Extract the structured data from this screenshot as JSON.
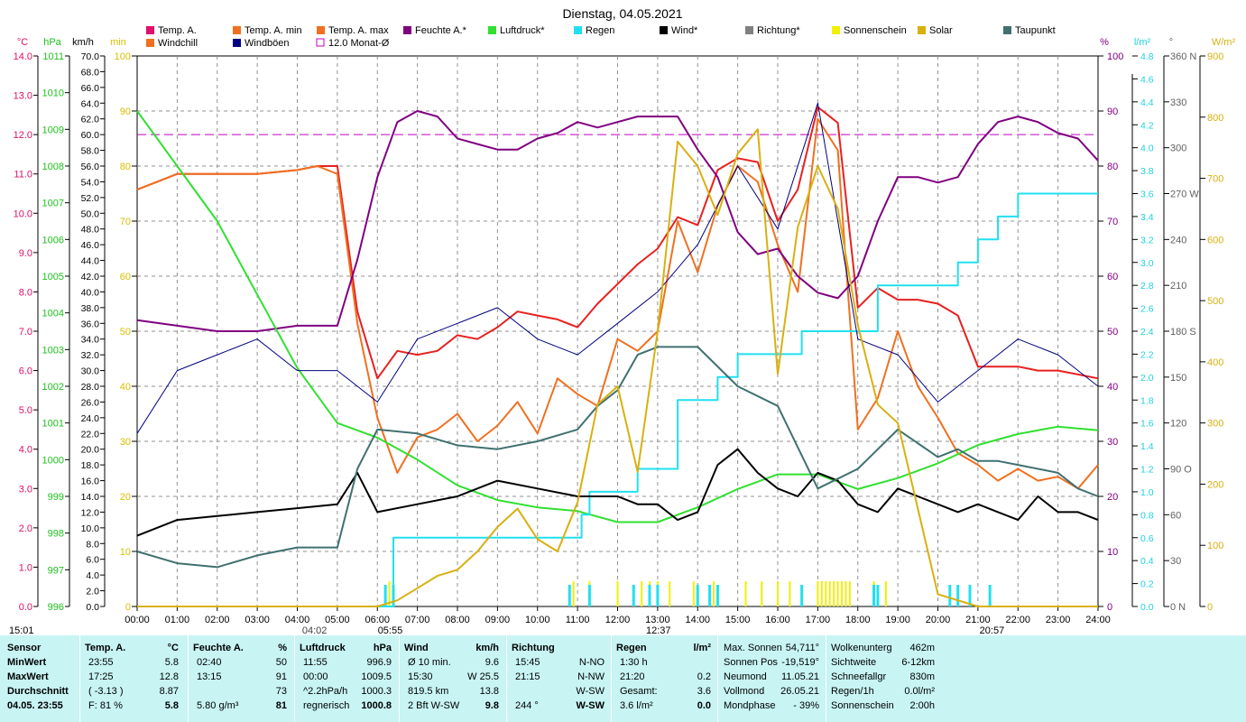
{
  "title": "Dienstag, 04.05.2021",
  "legend": [
    {
      "label": "Temp. A.",
      "color": "#e0106a",
      "type": "box"
    },
    {
      "label": "Temp. A. min",
      "color": "#f07020",
      "type": "box"
    },
    {
      "label": "Temp. A. max",
      "color": "#f07020",
      "type": "box"
    },
    {
      "label": "Feuchte A.*",
      "color": "#800080",
      "type": "box"
    },
    {
      "label": "Luftdruck*",
      "color": "#30e030",
      "type": "box"
    },
    {
      "label": "Regen",
      "color": "#20e0f0",
      "type": "box"
    },
    {
      "label": "Wind*",
      "color": "#000000",
      "type": "box"
    },
    {
      "label": "Richtung*",
      "color": "#808080",
      "type": "box"
    },
    {
      "label": "Sonnenschein",
      "color": "#f0f000",
      "type": "box"
    },
    {
      "label": "Solar",
      "color": "#d8b010",
      "type": "box"
    },
    {
      "label": "Taupunkt",
      "color": "#407070",
      "type": "box"
    },
    {
      "label": "Windchill",
      "color": "#f07020",
      "type": "box"
    },
    {
      "label": "Windböen",
      "color": "#000080",
      "type": "box"
    },
    {
      "label": "12.0 Monat-Ø",
      "color": "#c000c0",
      "type": "open"
    }
  ],
  "axis_units": {
    "temp": "°C",
    "press": "hPa",
    "wind": "km/h",
    "sun": "min",
    "hum": "%",
    "rain": "l/m²",
    "dir": "°",
    "solar": "W/m²"
  },
  "sun_markers": {
    "sunrise": "05:55",
    "sunset": "20:57",
    "moonset": "04:02",
    "moonrise": "12:37",
    "start": "15:01"
  },
  "chart_data": {
    "type": "line",
    "title": "Dienstag, 04.05.2021",
    "x_ticks": [
      "00:00",
      "01:00",
      "02:00",
      "03:00",
      "04:00",
      "05:00",
      "06:00",
      "07:00",
      "08:00",
      "09:00",
      "10:00",
      "11:00",
      "12:00",
      "13:00",
      "14:00",
      "15:00",
      "16:00",
      "17:00",
      "18:00",
      "19:00",
      "20:00",
      "21:00",
      "22:00",
      "23:00",
      "24:00"
    ],
    "axes": {
      "temp": {
        "min": 0.0,
        "max": 14.0,
        "step": 1.0,
        "color": "#e0106a",
        "labels": [
          "0.0",
          "1.0",
          "2.0",
          "3.0",
          "4.0",
          "5.0",
          "6.0",
          "7.0",
          "8.0",
          "9.0",
          "10.0",
          "11.0",
          "12.0",
          "13.0",
          "14.0"
        ]
      },
      "press": {
        "min": 996,
        "max": 1011,
        "color": "#20c020",
        "labels": [
          "996",
          "997",
          "998",
          "999",
          "1000",
          "1001",
          "1002",
          "1003",
          "1004",
          "1005",
          "1006",
          "1007",
          "1008",
          "1009",
          "1010",
          "1011"
        ]
      },
      "wind": {
        "min": 0,
        "max": 70,
        "color": "#000000",
        "labels": [
          "0.0",
          "2.0",
          "4.0",
          "6.0",
          "8.0",
          "10.0",
          "12.0",
          "14.0",
          "16.0",
          "18.0",
          "20.0",
          "22.0",
          "24.0",
          "26.0",
          "28.0",
          "30.0",
          "32.0",
          "34.0",
          "36.0",
          "38.0",
          "40.0",
          "42.0",
          "44.0",
          "46.0",
          "48.0",
          "50.0",
          "52.0",
          "54.0",
          "56.0",
          "58.0",
          "60.0",
          "62.0",
          "64.0",
          "66.0",
          "68.0",
          "70.0"
        ]
      },
      "sun": {
        "min": 0,
        "max": 100,
        "color": "#d8c000",
        "labels": [
          "0",
          "10",
          "20",
          "30",
          "40",
          "50",
          "60",
          "70",
          "80",
          "90",
          "100"
        ]
      },
      "hum": {
        "min": 0,
        "max": 100,
        "color": "#800080",
        "labels": [
          "0",
          "10",
          "20",
          "30",
          "40",
          "50",
          "60",
          "70",
          "80",
          "90",
          "100"
        ]
      },
      "rain": {
        "min": 0.0,
        "max": 4.8,
        "color": "#20d0e0",
        "labels": [
          "0.0",
          "0.2",
          "0.4",
          "0.6",
          "0.8",
          "1.0",
          "1.2",
          "1.4",
          "1.6",
          "1.8",
          "2.0",
          "2.2",
          "2.4",
          "2.6",
          "2.8",
          "3.0",
          "3.2",
          "3.4",
          "3.6",
          "3.8",
          "4.0",
          "4.2",
          "4.4",
          "4.6",
          "4.8"
        ]
      },
      "dir": {
        "min": 0,
        "max": 360,
        "color": "#606060",
        "labels": [
          "0 N",
          "30",
          "60",
          "90 O",
          "120",
          "150",
          "180 S",
          "210",
          "240",
          "270 W",
          "300",
          "330",
          "360 N"
        ]
      },
      "solar": {
        "min": 0,
        "max": 900,
        "color": "#d8b010",
        "labels": [
          "0",
          "100",
          "200",
          "300",
          "400",
          "500",
          "600",
          "700",
          "800",
          "900"
        ]
      }
    },
    "monthly_avg_temp": 12.0,
    "series": [
      {
        "name": "Temp. A.",
        "axis": "temp",
        "color": "#e82020",
        "x": [
          0,
          0.5,
          1,
          2,
          3,
          4,
          4.5,
          5,
          5.5,
          6,
          6.5,
          7,
          7.5,
          8,
          8.5,
          9,
          9.5,
          10,
          10.5,
          11,
          11.5,
          12,
          12.5,
          13,
          13.5,
          14,
          14.5,
          15,
          15.5,
          16,
          16.5,
          17,
          17.5,
          18,
          18.5,
          19,
          19.5,
          20,
          20.5,
          21,
          21.5,
          22,
          22.5,
          23,
          23.5,
          24
        ],
        "y": [
          10.6,
          10.8,
          11.0,
          11.0,
          11.0,
          11.1,
          11.2,
          11.2,
          7.5,
          5.8,
          6.5,
          6.4,
          6.5,
          6.9,
          6.8,
          7.1,
          7.5,
          7.4,
          7.3,
          7.1,
          7.7,
          8.2,
          8.7,
          9.1,
          9.9,
          9.7,
          11.1,
          11.4,
          11.3,
          9.8,
          10.6,
          12.7,
          12.3,
          7.6,
          8.1,
          7.8,
          7.8,
          7.7,
          7.4,
          6.1,
          6.1,
          6.1,
          6.0,
          6.0,
          5.9,
          5.8
        ]
      },
      {
        "name": "Windchill",
        "axis": "temp",
        "color": "#f07020",
        "x": [
          0,
          0.5,
          1,
          2,
          3,
          4,
          4.5,
          5,
          5.5,
          6,
          6.5,
          7,
          7.5,
          8,
          8.5,
          9,
          9.5,
          10,
          10.5,
          11,
          11.5,
          12,
          12.5,
          13,
          13.5,
          14,
          14.5,
          15,
          15.5,
          16,
          16.5,
          17,
          17.5,
          18,
          18.5,
          19,
          19.5,
          20,
          20.5,
          21,
          21.5,
          22,
          22.5,
          23,
          23.5,
          24
        ],
        "y": [
          10.6,
          10.8,
          11.0,
          11.0,
          11.0,
          11.1,
          11.2,
          11.0,
          7.2,
          4.8,
          3.4,
          4.3,
          4.5,
          4.9,
          4.2,
          4.6,
          5.2,
          4.4,
          5.8,
          5.4,
          5.1,
          6.8,
          6.5,
          7.0,
          9.8,
          8.5,
          10.2,
          11.2,
          10.8,
          9.2,
          8.0,
          12.4,
          11.6,
          4.5,
          5.3,
          7.0,
          5.6,
          4.8,
          3.9,
          3.6,
          3.2,
          3.5,
          3.2,
          3.3,
          3.0,
          3.6
        ]
      },
      {
        "name": "Feuchte A.*",
        "axis": "hum",
        "color": "#800080",
        "x": [
          0,
          1,
          2,
          3,
          4,
          5,
          5.5,
          6,
          6.5,
          7,
          7.5,
          8,
          8.5,
          9,
          9.5,
          10,
          10.5,
          11,
          11.5,
          12,
          12.5,
          13,
          13.5,
          14,
          14.5,
          15,
          15.5,
          16,
          16.5,
          17,
          17.5,
          18,
          18.5,
          19,
          19.5,
          20,
          20.5,
          21,
          21.5,
          22,
          22.5,
          23,
          23.5,
          24
        ],
        "y": [
          52,
          51,
          50,
          50,
          51,
          51,
          63,
          78,
          88,
          90,
          89,
          85,
          84,
          83,
          83,
          85,
          86,
          88,
          87,
          88,
          89,
          89,
          89,
          83,
          78,
          68,
          64,
          65,
          60,
          57,
          56,
          60,
          70,
          78,
          78,
          77,
          78,
          84,
          88,
          89,
          88,
          86,
          85,
          81
        ]
      },
      {
        "name": "Luftdruck*",
        "axis": "press",
        "color": "#30e030",
        "x": [
          0,
          1,
          2,
          3,
          4,
          5,
          6,
          7,
          8,
          9,
          10,
          11,
          12,
          13,
          14,
          15,
          16,
          17,
          18,
          19,
          20,
          21,
          22,
          23,
          24
        ],
        "y": [
          1009.5,
          1008.0,
          1006.5,
          1004.5,
          1002.5,
          1001.0,
          1000.6,
          1000.0,
          999.3,
          998.9,
          998.7,
          998.6,
          998.3,
          998.3,
          998.7,
          999.2,
          999.6,
          999.6,
          999.2,
          999.5,
          999.9,
          1000.4,
          1000.7,
          1000.9,
          1000.8
        ]
      },
      {
        "name": "Regen",
        "axis": "rain",
        "color": "#20e0f0",
        "x": [
          0,
          6,
          6.4,
          10.8,
          11.1,
          11.3,
          12,
          12.5,
          13.5,
          14.5,
          15,
          16,
          16.6,
          17,
          18,
          18.5,
          19,
          20,
          20.5,
          21,
          21.5,
          22,
          23,
          24
        ],
        "y": [
          0,
          0,
          0.6,
          0.6,
          0.8,
          1.0,
          1.0,
          1.2,
          1.8,
          2.0,
          2.2,
          2.2,
          2.4,
          2.4,
          2.4,
          2.8,
          2.8,
          2.8,
          3.0,
          3.2,
          3.4,
          3.6,
          3.6,
          3.6
        ]
      },
      {
        "name": "Wind*",
        "axis": "wind",
        "color": "#000000",
        "x": [
          0,
          1,
          2,
          3,
          4,
          5,
          5.5,
          6,
          7,
          8,
          9,
          10,
          11,
          12,
          12.5,
          13,
          13.5,
          14,
          14.5,
          15,
          15.5,
          16,
          16.5,
          17,
          17.5,
          18,
          18.5,
          19,
          19.5,
          20,
          20.5,
          21,
          21.5,
          22,
          22.5,
          23,
          23.5,
          24
        ],
        "y": [
          9,
          11,
          11.5,
          12,
          12.5,
          13,
          17,
          12,
          13,
          14,
          16,
          15,
          14,
          14,
          13,
          13,
          11,
          12,
          18,
          20,
          17,
          15,
          14,
          17,
          16,
          13,
          12,
          15,
          14,
          13,
          12,
          13,
          12,
          11,
          14,
          12,
          12,
          11
        ]
      },
      {
        "name": "Windböen",
        "axis": "wind",
        "color": "#000080",
        "x": [
          0,
          1,
          2,
          3,
          4,
          5,
          5.5,
          6,
          7,
          8,
          9,
          10,
          11,
          12,
          13,
          14,
          15,
          16,
          17,
          18,
          19,
          20,
          21,
          22,
          23,
          24
        ],
        "y": [
          22,
          30,
          32,
          34,
          30,
          30,
          28,
          26,
          34,
          36,
          38,
          34,
          32,
          36,
          40,
          46,
          56,
          48,
          64,
          34,
          32,
          26,
          30,
          34,
          32,
          28
        ]
      },
      {
        "name": "Taupunkt",
        "axis": "temp",
        "color": "#407070",
        "x": [
          0,
          1,
          2,
          3,
          4,
          5,
          5.5,
          6,
          7,
          8,
          9,
          10,
          11,
          11.5,
          12,
          12.5,
          13,
          14,
          15,
          16,
          17,
          18,
          19,
          20,
          20.5,
          21,
          21.5,
          22,
          23,
          23.5,
          24
        ],
        "y": [
          1.4,
          1.1,
          1.0,
          1.3,
          1.5,
          1.5,
          3.5,
          4.5,
          4.4,
          4.1,
          4.0,
          4.2,
          4.5,
          5.1,
          5.5,
          6.4,
          6.6,
          6.6,
          5.6,
          5.1,
          3.0,
          3.5,
          4.5,
          3.8,
          4.0,
          3.7,
          3.7,
          3.6,
          3.4,
          3.0,
          2.8
        ]
      },
      {
        "name": "Solar",
        "axis": "solar",
        "color": "#d8b010",
        "x": [
          0,
          6,
          6.5,
          7,
          7.5,
          8,
          8.5,
          9,
          9.5,
          10,
          10.5,
          11,
          11.5,
          12,
          12.5,
          13,
          13.5,
          14,
          14.5,
          15,
          15.5,
          16,
          16.5,
          17,
          17.5,
          18,
          18.5,
          19,
          19.5,
          20,
          21,
          24
        ],
        "y": [
          0,
          0,
          10,
          30,
          50,
          60,
          90,
          130,
          160,
          110,
          90,
          170,
          330,
          360,
          220,
          450,
          760,
          720,
          640,
          740,
          780,
          380,
          620,
          720,
          650,
          460,
          330,
          300,
          160,
          20,
          0,
          0
        ]
      }
    ],
    "sunshine_minutes_bars": [
      6.3,
      6.4,
      10.9,
      11.3,
      12.0,
      12.6,
      12.8,
      13.0,
      13.3,
      13.9,
      14.4,
      15.2,
      15.6,
      16.0,
      16.3,
      17.0,
      17.1,
      17.2,
      17.3,
      17.4,
      17.5,
      17.6,
      17.7,
      17.8,
      18.4,
      18.7
    ],
    "rain_ticks": [
      6.2,
      6.4,
      10.8,
      11.3,
      12.4,
      12.8,
      13.0,
      14.0,
      14.3,
      14.5,
      16.6,
      18.4,
      18.5,
      20.3,
      20.5,
      20.8,
      21.3
    ]
  },
  "table": {
    "sensor": {
      "header": "Sensor",
      "rows": [
        "MinWert",
        "MaxWert",
        "Durchschnitt",
        "04.05. 23:55"
      ]
    },
    "temp": {
      "header": "Temp. A.",
      "unit": "°C",
      "rows": [
        [
          "23:55",
          "5.8"
        ],
        [
          "17:25",
          "12.8"
        ],
        [
          "( -3.13 )",
          "8.87"
        ],
        [
          "F: 81 %",
          "5.8"
        ]
      ]
    },
    "hum": {
      "header": "Feuchte A.",
      "unit": "%",
      "rows": [
        [
          "02:40",
          "50"
        ],
        [
          "13:15",
          "91"
        ],
        [
          "",
          "73"
        ],
        [
          "5.80 g/m³",
          "81"
        ]
      ]
    },
    "press": {
      "header": "Luftdruck",
      "unit": "hPa",
      "rows": [
        [
          "11:55",
          "996.9"
        ],
        [
          "00:00",
          "1009.5"
        ],
        [
          "^2.2hPa/h",
          "1000.3"
        ],
        [
          "regnerisch",
          "1000.8"
        ]
      ]
    },
    "wind": {
      "header": "Wind",
      "unit": "km/h",
      "rows": [
        [
          "Ø 10 min.",
          "9.6"
        ],
        [
          "15:30",
          "W 25.5"
        ],
        [
          "819.5 km",
          "13.8"
        ],
        [
          "2 Bft W-SW",
          "9.8"
        ]
      ]
    },
    "dir": {
      "header": "Richtung",
      "rows": [
        [
          "15:45",
          "N-NO"
        ],
        [
          "21:15",
          "N-NW"
        ],
        [
          "",
          "W-SW"
        ],
        [
          "244 °",
          "W-SW"
        ]
      ]
    },
    "rain": {
      "header": "Regen",
      "unit": "l/m²",
      "rows": [
        [
          "1:30 h",
          ""
        ],
        [
          "21:20",
          "0.2"
        ],
        [
          "Gesamt:",
          "3.6"
        ],
        [
          "3.6 l/m²",
          "0.0"
        ]
      ]
    },
    "sun": {
      "rows": [
        [
          "Max. Sonnen",
          "54,711°"
        ],
        [
          "Sonnen Pos",
          "-19,519°"
        ],
        [
          "Neumond",
          "11.05.21"
        ],
        [
          "Vollmond",
          "26.05.21"
        ],
        [
          "Mondphase",
          "- 39%"
        ]
      ]
    },
    "misc": {
      "rows": [
        [
          "Wolkenunterg",
          "462m"
        ],
        [
          "Sichtweite",
          "6-12km"
        ],
        [
          "Schneefallgr",
          "830m"
        ],
        [
          "Regen/1h",
          "0.0l/m²"
        ],
        [
          "Sonnenschein",
          "2:00h"
        ]
      ]
    }
  }
}
